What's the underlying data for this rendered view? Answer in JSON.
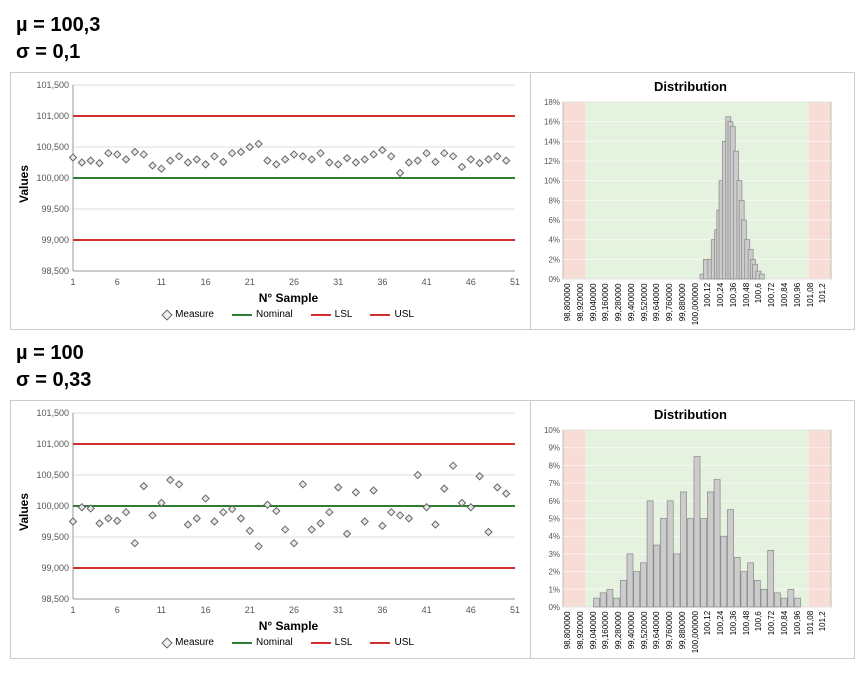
{
  "colors": {
    "nominal": "#2e7d32",
    "limit": "#d32f2f",
    "marker_fill": "#e8e8e8",
    "marker_stroke": "#666666",
    "grid": "#dddddd",
    "border": "#cccccc",
    "hist_bar_fill": "#cccccc",
    "hist_bar_stroke": "#888888",
    "zone_ok": "#e6f2e0",
    "zone_bad": "#f8dcd6",
    "text": "#000000"
  },
  "fonts": {
    "header_size": 20,
    "axis_label_size": 12,
    "tick_size": 9,
    "legend_size": 10,
    "title_size": 13
  },
  "panel1": {
    "mu_label": "µ = 100,3",
    "sigma_label": "σ = 0,1",
    "scatter": {
      "type": "scatter",
      "ylabel": "Values",
      "xlabel": "N° Sample",
      "ylim": [
        98.5,
        101.5
      ],
      "yticks": [
        98.5,
        99.0,
        99.5,
        100.0,
        100.5,
        101.0,
        101.5
      ],
      "ytick_labels": [
        "98,500",
        "99,000",
        "99,500",
        "100,000",
        "100,500",
        "101,000",
        "101,500"
      ],
      "xlim": [
        1,
        51
      ],
      "xticks": [
        1,
        6,
        11,
        16,
        21,
        26,
        31,
        36,
        41,
        46,
        51
      ],
      "nominal": 100.0,
      "lsl": 99.0,
      "usl": 101.0,
      "values": [
        100.33,
        100.25,
        100.28,
        100.24,
        100.4,
        100.38,
        100.3,
        100.42,
        100.38,
        100.2,
        100.15,
        100.28,
        100.35,
        100.25,
        100.3,
        100.22,
        100.35,
        100.26,
        100.4,
        100.42,
        100.5,
        100.55,
        100.28,
        100.22,
        100.3,
        100.38,
        100.35,
        100.3,
        100.4,
        100.25,
        100.22,
        100.32,
        100.25,
        100.3,
        100.38,
        100.45,
        100.35,
        100.08,
        100.25,
        100.28,
        100.4,
        100.26,
        100.4,
        100.35,
        100.18,
        100.3,
        100.24,
        100.3,
        100.35,
        100.28
      ],
      "legend": {
        "measure": "Measure",
        "nominal": "Nominal",
        "lsl": "LSL",
        "usl": "USL"
      }
    },
    "hist": {
      "type": "histogram",
      "title": "Distribution",
      "ylim": [
        0,
        0.18
      ],
      "yticks": [
        0,
        0.02,
        0.04,
        0.06,
        0.08,
        0.1,
        0.12,
        0.14,
        0.16,
        0.18
      ],
      "ytick_labels": [
        "0%",
        "2%",
        "4%",
        "6%",
        "8%",
        "10%",
        "12%",
        "14%",
        "16%",
        "18%"
      ],
      "xticks_labels": [
        "98,800000",
        "98,920000",
        "99,040000",
        "99,160000",
        "99,280000",
        "99,400000",
        "99,520000",
        "99,640000",
        "99,760000",
        "99,880000",
        "100,000000",
        "100,12",
        "100,24",
        "100,36",
        "100,48",
        "100,6",
        "100,72",
        "100,84",
        "100,96",
        "101,08",
        "101,2"
      ],
      "xticks_values": [
        98.8,
        98.92,
        99.04,
        99.16,
        99.28,
        99.4,
        99.52,
        99.64,
        99.76,
        99.88,
        100.0,
        100.12,
        100.24,
        100.36,
        100.48,
        100.6,
        100.72,
        100.84,
        100.96,
        101.08,
        101.2
      ],
      "lsl": 99.0,
      "usl": 101.0,
      "bin_width": 0.05,
      "bins": [
        {
          "x": 100.05,
          "p": 0.005
        },
        {
          "x": 100.08,
          "p": 0.02
        },
        {
          "x": 100.12,
          "p": 0.02
        },
        {
          "x": 100.15,
          "p": 0.04
        },
        {
          "x": 100.18,
          "p": 0.05
        },
        {
          "x": 100.2,
          "p": 0.07
        },
        {
          "x": 100.22,
          "p": 0.1
        },
        {
          "x": 100.25,
          "p": 0.14
        },
        {
          "x": 100.28,
          "p": 0.165
        },
        {
          "x": 100.3,
          "p": 0.16
        },
        {
          "x": 100.32,
          "p": 0.155
        },
        {
          "x": 100.35,
          "p": 0.13
        },
        {
          "x": 100.38,
          "p": 0.1
        },
        {
          "x": 100.4,
          "p": 0.08
        },
        {
          "x": 100.42,
          "p": 0.06
        },
        {
          "x": 100.45,
          "p": 0.04
        },
        {
          "x": 100.48,
          "p": 0.03
        },
        {
          "x": 100.5,
          "p": 0.02
        },
        {
          "x": 100.52,
          "p": 0.015
        },
        {
          "x": 100.55,
          "p": 0.008
        },
        {
          "x": 100.58,
          "p": 0.005
        }
      ]
    }
  },
  "panel2": {
    "mu_label": "µ = 100",
    "sigma_label": "σ = 0,33",
    "scatter": {
      "type": "scatter",
      "ylabel": "Values",
      "xlabel": "N° Sample",
      "ylim": [
        98.5,
        101.5
      ],
      "yticks": [
        98.5,
        99.0,
        99.5,
        100.0,
        100.5,
        101.0,
        101.5
      ],
      "ytick_labels": [
        "98,500",
        "99,000",
        "99,500",
        "100,000",
        "100,500",
        "101,000",
        "101,500"
      ],
      "xlim": [
        1,
        51
      ],
      "xticks": [
        1,
        6,
        11,
        16,
        21,
        26,
        31,
        36,
        41,
        46,
        51
      ],
      "nominal": 100.0,
      "lsl": 99.0,
      "usl": 101.0,
      "values": [
        99.75,
        99.98,
        99.96,
        99.72,
        99.8,
        99.76,
        99.9,
        99.4,
        100.32,
        99.85,
        100.05,
        100.42,
        100.35,
        99.7,
        99.8,
        100.12,
        99.75,
        99.9,
        99.95,
        99.8,
        99.6,
        99.35,
        100.02,
        99.92,
        99.62,
        99.4,
        100.35,
        99.62,
        99.72,
        99.9,
        100.3,
        99.55,
        100.22,
        99.75,
        100.25,
        99.68,
        99.9,
        99.85,
        99.8,
        100.5,
        99.98,
        99.7,
        100.28,
        100.65,
        100.05,
        99.98,
        100.48,
        99.58,
        100.3,
        100.2
      ],
      "legend": {
        "measure": "Measure",
        "nominal": "Nominal",
        "lsl": "LSL",
        "usl": "USL"
      }
    },
    "hist": {
      "type": "histogram",
      "title": "Distribution",
      "ylim": [
        0,
        0.1
      ],
      "yticks": [
        0,
        0.01,
        0.02,
        0.03,
        0.04,
        0.05,
        0.06,
        0.07,
        0.08,
        0.09,
        0.1
      ],
      "ytick_labels": [
        "0%",
        "1%",
        "2%",
        "3%",
        "4%",
        "5%",
        "6%",
        "7%",
        "8%",
        "9%",
        "10%"
      ],
      "xticks_labels": [
        "98,800000",
        "98,920000",
        "99,040000",
        "99,160000",
        "99,280000",
        "99,400000",
        "99,520000",
        "99,640000",
        "99,760000",
        "99,880000",
        "100,000000",
        "100,12",
        "100,24",
        "100,36",
        "100,48",
        "100,6",
        "100,72",
        "100,84",
        "100,96",
        "101,08",
        "101,2"
      ],
      "xticks_values": [
        98.8,
        98.92,
        99.04,
        99.16,
        99.28,
        99.4,
        99.52,
        99.64,
        99.76,
        99.88,
        100.0,
        100.12,
        100.24,
        100.36,
        100.48,
        100.6,
        100.72,
        100.84,
        100.96,
        101.08,
        101.2
      ],
      "lsl": 99.0,
      "usl": 101.0,
      "bin_width": 0.06,
      "bins": [
        {
          "x": 99.1,
          "p": 0.005
        },
        {
          "x": 99.16,
          "p": 0.008
        },
        {
          "x": 99.22,
          "p": 0.01
        },
        {
          "x": 99.28,
          "p": 0.005
        },
        {
          "x": 99.34,
          "p": 0.015
        },
        {
          "x": 99.4,
          "p": 0.03
        },
        {
          "x": 99.46,
          "p": 0.02
        },
        {
          "x": 99.52,
          "p": 0.025
        },
        {
          "x": 99.58,
          "p": 0.06
        },
        {
          "x": 99.64,
          "p": 0.035
        },
        {
          "x": 99.7,
          "p": 0.05
        },
        {
          "x": 99.76,
          "p": 0.06
        },
        {
          "x": 99.82,
          "p": 0.03
        },
        {
          "x": 99.88,
          "p": 0.065
        },
        {
          "x": 99.94,
          "p": 0.05
        },
        {
          "x": 100.0,
          "p": 0.085
        },
        {
          "x": 100.06,
          "p": 0.05
        },
        {
          "x": 100.12,
          "p": 0.065
        },
        {
          "x": 100.18,
          "p": 0.072
        },
        {
          "x": 100.24,
          "p": 0.04
        },
        {
          "x": 100.3,
          "p": 0.055
        },
        {
          "x": 100.36,
          "p": 0.028
        },
        {
          "x": 100.42,
          "p": 0.02
        },
        {
          "x": 100.48,
          "p": 0.025
        },
        {
          "x": 100.54,
          "p": 0.015
        },
        {
          "x": 100.6,
          "p": 0.01
        },
        {
          "x": 100.66,
          "p": 0.032
        },
        {
          "x": 100.72,
          "p": 0.008
        },
        {
          "x": 100.78,
          "p": 0.005
        },
        {
          "x": 100.84,
          "p": 0.01
        },
        {
          "x": 100.9,
          "p": 0.005
        }
      ]
    }
  }
}
